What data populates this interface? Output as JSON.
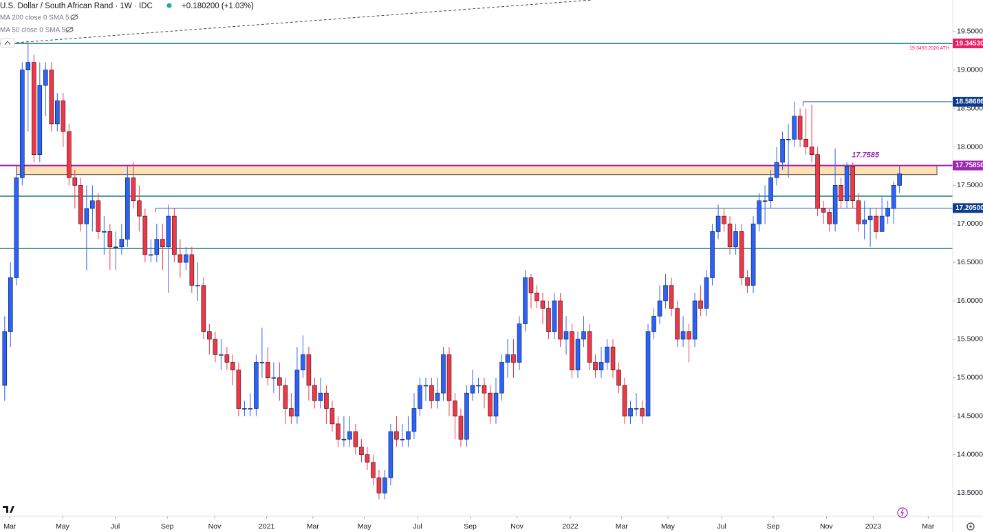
{
  "chart_data": {
    "type": "candlestick",
    "title": "U.S. Dollar / South African Rand · 1W · IDC",
    "change": "+0.180200 (+1.03%)",
    "indicators": [
      "MA 200 close 0 SMA 5",
      "MA 50 close 0 SMA 5"
    ],
    "up_color": "#2962ff",
    "down_color": "#f23645",
    "open": [
      14.9,
      15.6,
      16.3,
      17.6,
      19.0,
      19.1,
      17.9,
      18.8,
      19.0,
      18.3,
      18.6,
      18.2,
      17.6,
      17.5,
      17.0,
      17.2,
      17.3,
      16.9,
      16.9,
      16.7,
      16.7,
      16.8,
      17.6,
      17.3,
      17.1,
      16.6,
      16.6,
      16.8,
      16.7,
      17.1,
      16.6,
      16.5,
      16.6,
      16.2,
      16.2,
      15.6,
      15.5,
      15.3,
      15.3,
      15.2,
      15.1,
      14.6,
      14.6,
      14.6,
      15.2,
      15.2,
      15.0,
      15.0,
      14.9,
      14.6,
      14.5,
      15.1,
      15.3,
      14.9,
      14.7,
      14.8,
      14.6,
      14.4,
      14.2,
      14.2,
      14.3,
      14.1,
      14.0,
      13.9,
      13.7,
      13.5,
      13.7,
      14.3,
      14.2,
      14.2,
      14.3,
      14.6,
      14.9,
      14.9,
      14.7,
      14.8,
      15.3,
      14.7,
      14.5,
      14.2,
      14.8,
      14.9,
      14.9,
      14.8,
      14.5,
      14.8,
      15.2,
      15.3,
      15.2,
      15.7,
      16.3,
      16.1,
      16.0,
      15.9,
      15.6,
      16.0,
      15.5,
      15.6,
      15.1,
      15.5,
      15.6,
      15.2,
      15.1,
      15.2,
      15.4,
      15.1,
      14.9,
      14.5,
      14.6,
      14.6,
      14.5,
      15.6,
      15.8,
      16.0,
      16.2,
      15.9,
      15.5,
      15.6,
      15.5,
      16.0,
      15.9,
      16.3,
      16.9,
      17.1,
      17.0,
      16.7,
      16.9,
      16.3,
      16.2,
      17.0,
      17.3,
      17.3,
      17.6,
      17.8,
      18.1,
      18.1,
      18.4,
      18.1,
      18.0,
      17.9,
      17.2,
      17.15,
      17.0,
      17.5,
      17.3,
      17.75,
      17.3,
      17.0,
      17.05,
      17.1,
      16.9,
      17.1,
      17.2,
      17.5
    ],
    "high": [
      15.8,
      16.5,
      17.7,
      19.1,
      19.35,
      19.2,
      19.1,
      19.1,
      19.1,
      18.7,
      18.7,
      18.3,
      17.7,
      17.6,
      17.5,
      17.5,
      17.4,
      17.1,
      17.0,
      16.9,
      17.0,
      17.75,
      17.8,
      17.5,
      17.2,
      16.8,
      17.0,
      17.0,
      17.25,
      17.2,
      16.8,
      16.7,
      16.7,
      16.5,
      16.3,
      15.7,
      15.6,
      15.5,
      15.4,
      15.3,
      15.2,
      14.7,
      14.8,
      15.3,
      15.65,
      15.4,
      15.2,
      15.2,
      15.0,
      14.8,
      15.4,
      15.55,
      15.4,
      15.0,
      15.0,
      14.9,
      14.7,
      14.5,
      14.5,
      14.5,
      14.4,
      14.2,
      14.1,
      14.0,
      13.8,
      13.8,
      14.4,
      14.5,
      14.4,
      14.5,
      14.8,
      15.0,
      15.0,
      15.0,
      15.0,
      15.4,
      15.4,
      14.8,
      14.6,
      14.9,
      15.1,
      15.0,
      15.0,
      14.9,
      15.0,
      15.3,
      15.5,
      15.5,
      15.8,
      16.4,
      16.35,
      16.2,
      16.1,
      16.0,
      16.1,
      16.1,
      15.8,
      15.7,
      15.6,
      15.8,
      15.7,
      15.3,
      15.4,
      15.5,
      15.5,
      15.2,
      15.0,
      14.7,
      14.8,
      14.7,
      15.7,
      15.9,
      16.2,
      16.35,
      16.3,
      16.0,
      15.8,
      15.7,
      16.1,
      16.2,
      16.4,
      17.0,
      17.25,
      17.2,
      17.1,
      17.0,
      17.0,
      16.4,
      17.1,
      17.4,
      17.5,
      17.7,
      18.0,
      18.2,
      18.3,
      18.59,
      18.5,
      18.5,
      18.55,
      18.0,
      17.3,
      17.2,
      17.98,
      17.6,
      17.8,
      17.8,
      17.4,
      17.3,
      17.2,
      17.2,
      17.35,
      17.3,
      17.55,
      17.75
    ],
    "low": [
      14.7,
      15.4,
      16.2,
      17.5,
      18.2,
      17.8,
      17.8,
      18.4,
      18.2,
      18.2,
      18.0,
      17.5,
      17.2,
      16.9,
      16.4,
      16.9,
      16.8,
      16.6,
      16.4,
      16.4,
      16.6,
      16.7,
      17.2,
      16.9,
      16.5,
      16.5,
      16.5,
      16.4,
      16.1,
      16.5,
      16.3,
      16.4,
      16.1,
      16.0,
      15.5,
      15.3,
      15.2,
      15.1,
      15.1,
      14.9,
      14.5,
      14.5,
      14.5,
      14.5,
      15.0,
      14.9,
      14.8,
      14.7,
      14.4,
      14.4,
      14.4,
      15.0,
      14.7,
      14.6,
      14.6,
      14.4,
      14.3,
      14.1,
      14.1,
      14.1,
      14.0,
      13.9,
      13.8,
      13.6,
      13.42,
      13.42,
      13.6,
      14.1,
      14.1,
      14.1,
      14.2,
      14.5,
      14.7,
      14.6,
      14.6,
      14.7,
      14.5,
      14.2,
      14.1,
      14.1,
      14.7,
      14.8,
      14.6,
      14.4,
      14.4,
      14.7,
      15.0,
      15.0,
      15.1,
      15.6,
      15.9,
      15.9,
      15.7,
      15.5,
      15.5,
      15.4,
      15.3,
      15.0,
      15.0,
      15.4,
      15.1,
      15.0,
      15.0,
      15.1,
      15.0,
      14.8,
      14.4,
      14.4,
      14.5,
      14.4,
      14.5,
      15.5,
      15.7,
      15.9,
      15.8,
      15.4,
      15.4,
      15.2,
      15.4,
      15.8,
      15.8,
      16.2,
      16.8,
      16.9,
      16.6,
      16.6,
      16.2,
      16.1,
      16.1,
      16.9,
      17.0,
      17.2,
      17.5,
      17.7,
      17.6,
      18.0,
      18.0,
      17.9,
      17.8,
      17.1,
      17.0,
      16.9,
      16.9,
      17.2,
      17.2,
      17.2,
      16.9,
      16.8,
      16.7,
      16.8,
      16.9,
      17.0,
      17.0,
      17.4
    ],
    "close": [
      15.6,
      16.3,
      17.6,
      19.0,
      19.1,
      17.9,
      18.8,
      19.0,
      18.3,
      18.6,
      18.2,
      17.6,
      17.5,
      17.0,
      17.2,
      17.3,
      16.9,
      16.9,
      16.7,
      16.7,
      16.8,
      17.6,
      17.3,
      17.1,
      16.6,
      16.6,
      16.8,
      16.7,
      17.1,
      16.6,
      16.5,
      16.6,
      16.2,
      16.2,
      15.6,
      15.5,
      15.3,
      15.3,
      15.2,
      15.1,
      14.6,
      14.6,
      14.6,
      15.2,
      15.2,
      15.0,
      15.0,
      14.9,
      14.6,
      14.5,
      15.1,
      15.3,
      14.9,
      14.7,
      14.8,
      14.6,
      14.4,
      14.2,
      14.2,
      14.3,
      14.1,
      14.0,
      13.9,
      13.7,
      13.5,
      13.7,
      14.3,
      14.2,
      14.2,
      14.3,
      14.6,
      14.9,
      14.9,
      14.7,
      14.8,
      15.3,
      14.7,
      14.5,
      14.2,
      14.8,
      14.9,
      14.9,
      14.8,
      14.5,
      14.8,
      15.2,
      15.3,
      15.2,
      15.7,
      16.3,
      16.1,
      16.0,
      15.9,
      15.6,
      16.0,
      15.5,
      15.6,
      15.1,
      15.5,
      15.6,
      15.2,
      15.1,
      15.2,
      15.4,
      15.1,
      14.9,
      14.5,
      14.6,
      14.6,
      14.5,
      15.6,
      15.8,
      16.0,
      16.2,
      15.9,
      15.5,
      15.6,
      15.5,
      16.0,
      15.9,
      16.3,
      16.9,
      17.1,
      17.0,
      16.7,
      16.9,
      16.3,
      16.2,
      17.0,
      17.3,
      17.3,
      17.6,
      17.8,
      18.1,
      18.1,
      18.4,
      18.1,
      18.0,
      17.9,
      17.2,
      17.15,
      17.0,
      17.5,
      17.3,
      17.75,
      17.3,
      17.0,
      17.05,
      17.1,
      16.9,
      17.1,
      17.2,
      17.5,
      17.65
    ],
    "xlim": [
      -0.8,
      162.1
    ],
    "xticks": [
      {
        "value": 0.9,
        "label": "Mar"
      },
      {
        "value": 9.9,
        "label": "May"
      },
      {
        "value": 18.9,
        "label": "Jul"
      },
      {
        "value": 27.8,
        "label": "Sep"
      },
      {
        "value": 35.9,
        "label": "Nov"
      },
      {
        "value": 44.8,
        "label": "2021"
      },
      {
        "value": 52.7,
        "label": "Mar"
      },
      {
        "value": 61.5,
        "label": "May"
      },
      {
        "value": 70.6,
        "label": "Jul"
      },
      {
        "value": 79.6,
        "label": "Sep"
      },
      {
        "value": 87.6,
        "label": "Nov"
      },
      {
        "value": 96.7,
        "label": "2022"
      },
      {
        "value": 105.5,
        "label": "Mar"
      },
      {
        "value": 113.4,
        "label": "May"
      },
      {
        "value": 122.6,
        "label": "Jul"
      },
      {
        "value": 131.4,
        "label": "Sep"
      },
      {
        "value": 140.5,
        "label": "Nov"
      },
      {
        "value": 148.5,
        "label": "2023"
      },
      {
        "value": 157.9,
        "label": "Mar"
      }
    ],
    "ylim": [
      13.2,
      19.91
    ],
    "yticks": [
      {
        "value": 13.5,
        "label": "13.500000"
      },
      {
        "value": 14.0,
        "label": "14.000000"
      },
      {
        "value": 14.5,
        "label": "14.500000"
      },
      {
        "value": 15.0,
        "label": "15.000000"
      },
      {
        "value": 15.5,
        "label": "15.500000"
      },
      {
        "value": 16.0,
        "label": "16.000000"
      },
      {
        "value": 16.5,
        "label": "16.500000"
      },
      {
        "value": 17.0,
        "label": "17.000000"
      },
      {
        "value": 17.5,
        "label": "17.500000"
      },
      {
        "value": 18.0,
        "label": "18.000000"
      },
      {
        "value": 18.5,
        "label": "18.500000"
      },
      {
        "value": 19.0,
        "label": "19.000000"
      },
      {
        "value": 19.5,
        "label": "19.500000"
      }
    ],
    "grid": false,
    "zone": {
      "low": 17.64,
      "high": 17.755,
      "x_start": 2.0,
      "x_end": 159.4,
      "color": "#ffe0b2"
    },
    "levels": [
      {
        "value": 19.3453,
        "color": "#1b7f74",
        "label": "19.34530",
        "label_color": "#e91e63",
        "note": "19.3453 2020 ATH"
      },
      {
        "value": 18.58686,
        "color": "#3a5fb0",
        "x_start": 136.5,
        "label": "18.58686",
        "label_color": "#0d3b8c"
      },
      {
        "value": 17.7585,
        "color": "#9c27b0",
        "label": "17.75850",
        "label_color": "#9c27b0",
        "note": "17.7585"
      },
      {
        "value": 17.205,
        "color": "#3a5fb0",
        "x_start": 25.8,
        "label": "17.20500",
        "label_color": "#0d3b8c"
      },
      {
        "value": 17.36,
        "color": "#1b7f74"
      },
      {
        "value": 16.68,
        "color": "#1b7f74"
      }
    ]
  }
}
